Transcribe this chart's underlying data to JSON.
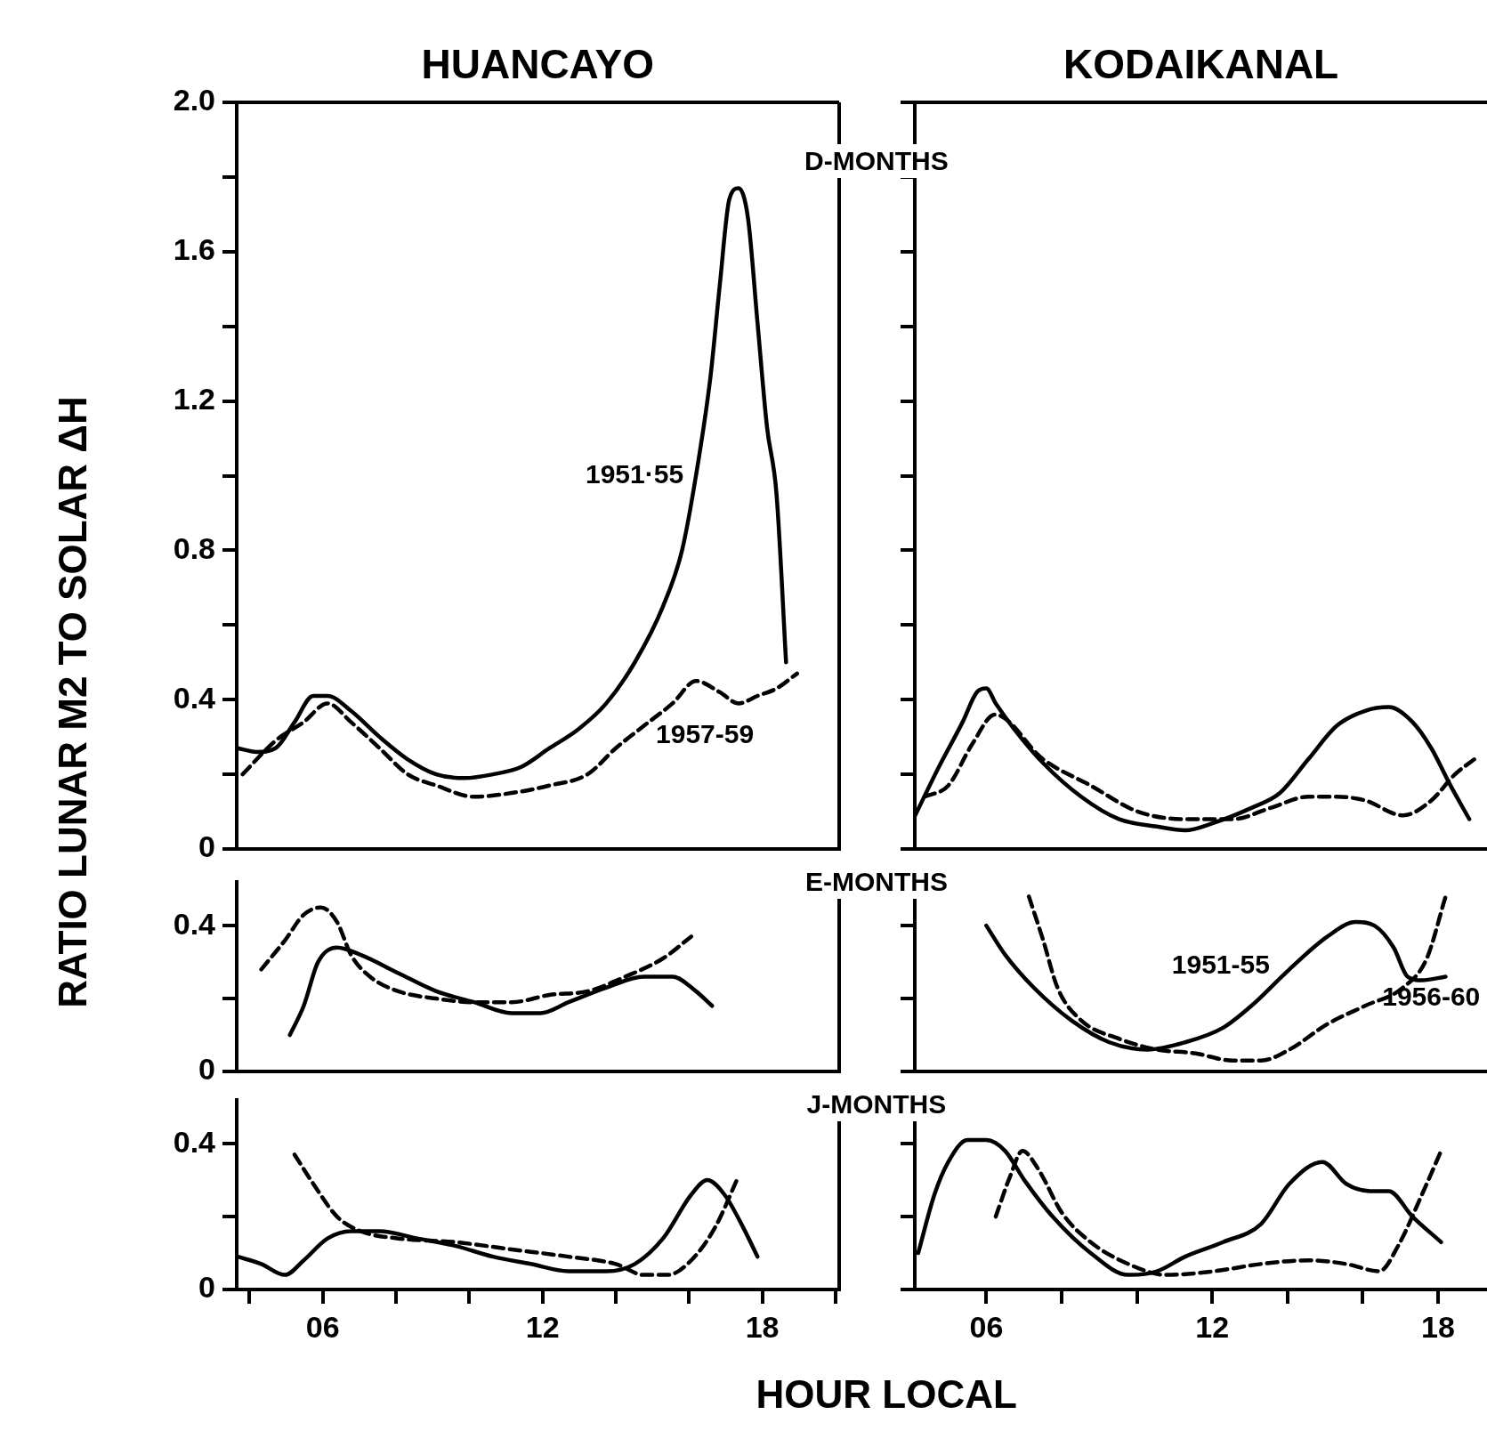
{
  "chart_data": [
    {
      "type": "line",
      "title": "HUANCAYO",
      "ylabel": "RATIO LUNAR M2 TO SOLAR ΔH",
      "annotations": [
        "D-MONTHS"
      ],
      "xlim": [
        3.65,
        20.1
      ],
      "ylim": [
        0,
        2
      ],
      "yticks": [
        0,
        {
          "value": 0.2,
          "label": null
        },
        0.4,
        {
          "value": 0.6,
          "label": null
        },
        0.8,
        {
          "value": 1.0,
          "label": null
        },
        1.2,
        {
          "value": 1.4,
          "label": null
        },
        1.6,
        {
          "value": 1.8,
          "label": null
        },
        {
          "value": 2,
          "label": "2.0"
        }
      ],
      "tick_labels": "y",
      "series": [
        {
          "name": "1951·55",
          "color": "#000000",
          "line_style": "solid",
          "x": [
            3.68,
            4.19,
            4.71,
            5.23,
            5.74,
            6.13,
            6.77,
            7.55,
            8.32,
            9.1,
            9.87,
            10.65,
            11.42,
            12.19,
            12.97,
            13.74,
            14.52,
            15.29,
            15.81,
            16.19,
            16.58,
            16.84,
            17.1,
            17.35,
            17.61,
            17.87,
            18.13,
            18.39,
            18.65
          ],
          "values": [
            0.27,
            0.26,
            0.27,
            0.34,
            0.41,
            0.41,
            0.37,
            0.3,
            0.24,
            0.2,
            0.19,
            0.2,
            0.22,
            0.27,
            0.32,
            0.39,
            0.5,
            0.65,
            0.8,
            1.0,
            1.26,
            1.51,
            1.74,
            1.77,
            1.69,
            1.41,
            1.13,
            0.95,
            0.5
          ]
        },
        {
          "name": "1957-59",
          "color": "#000000",
          "line_style": "dashed",
          "x": [
            3.81,
            4.71,
            5.48,
            6.13,
            6.77,
            7.55,
            8.32,
            9.1,
            10.13,
            11.16,
            12.19,
            13.23,
            14.0,
            14.77,
            15.55,
            16.19,
            16.84,
            17.35,
            17.87,
            18.39,
            18.95
          ],
          "values": [
            0.2,
            0.29,
            0.34,
            0.39,
            0.34,
            0.27,
            0.2,
            0.17,
            0.14,
            0.15,
            0.17,
            0.2,
            0.27,
            0.33,
            0.39,
            0.45,
            0.42,
            0.39,
            0.41,
            0.43,
            0.47
          ]
        }
      ]
    },
    {
      "type": "line",
      "title": "KODAIKANAL",
      "xlim": [
        4.1,
        19.3
      ],
      "ylim": [
        0,
        2
      ],
      "yticks": [
        0,
        {
          "value": 0.2,
          "label": null
        },
        0.4,
        {
          "value": 0.6,
          "label": null
        },
        0.8,
        {
          "value": 1.0,
          "label": null
        },
        1.2,
        {
          "value": 1.4,
          "label": null
        },
        1.6,
        {
          "value": 1.8,
          "label": null
        },
        {
          "value": 2,
          "label": null
        }
      ],
      "tick_labels": false,
      "series": [
        {
          "color": "#000000",
          "line_style": "solid",
          "x": [
            4.11,
            4.74,
            5.37,
            5.75,
            6.0,
            6.25,
            6.75,
            7.51,
            8.52,
            9.52,
            10.53,
            11.28,
            12.04,
            13.04,
            13.8,
            14.55,
            15.31,
            16.06,
            16.69,
            17.32,
            17.82,
            18.33,
            18.83
          ],
          "values": [
            0.09,
            0.22,
            0.34,
            0.42,
            0.43,
            0.39,
            0.32,
            0.23,
            0.14,
            0.08,
            0.06,
            0.05,
            0.07,
            0.11,
            0.15,
            0.24,
            0.33,
            0.37,
            0.38,
            0.34,
            0.27,
            0.17,
            0.08
          ]
        },
        {
          "color": "#000000",
          "line_style": "dashed",
          "x": [
            4.36,
            4.99,
            5.62,
            6.23,
            7.51,
            8.77,
            10.03,
            11.28,
            12.54,
            13.55,
            14.55,
            15.31,
            16.06,
            17.07,
            17.82,
            18.45,
            18.96
          ],
          "values": [
            0.14,
            0.17,
            0.28,
            0.36,
            0.24,
            0.17,
            0.1,
            0.08,
            0.08,
            0.11,
            0.14,
            0.14,
            0.13,
            0.09,
            0.13,
            0.2,
            0.24
          ]
        }
      ]
    },
    {
      "type": "line",
      "annotations": [
        "E-MONTHS"
      ],
      "xlim": [
        3.65,
        20.1
      ],
      "ylim": [
        0,
        0.52
      ],
      "yticks": [
        0,
        {
          "value": 0.2,
          "label": null
        },
        0.4
      ],
      "tick_labels": "y",
      "series": [
        {
          "color": "#000000",
          "line_style": "solid",
          "x": [
            5.1,
            5.48,
            5.87,
            6.39,
            7.03,
            8.06,
            9.1,
            10.13,
            11.16,
            11.94,
            12.71,
            13.74,
            14.77,
            15.55,
            16.19,
            16.63
          ],
          "values": [
            0.1,
            0.18,
            0.3,
            0.34,
            0.32,
            0.27,
            0.22,
            0.19,
            0.16,
            0.16,
            0.19,
            0.23,
            0.26,
            0.26,
            0.22,
            0.18
          ]
        },
        {
          "color": "#000000",
          "line_style": "dashed",
          "x": [
            4.32,
            4.97,
            5.48,
            5.95,
            6.39,
            6.77,
            7.29,
            8.06,
            9.1,
            10.13,
            11.16,
            12.19,
            13.23,
            14.26,
            15.29,
            16.06
          ],
          "values": [
            0.28,
            0.36,
            0.43,
            0.45,
            0.41,
            0.32,
            0.26,
            0.22,
            0.2,
            0.19,
            0.19,
            0.21,
            0.22,
            0.26,
            0.31,
            0.37
          ]
        }
      ]
    },
    {
      "type": "line",
      "xlim": [
        4.1,
        19.3
      ],
      "ylim": [
        0,
        0.52
      ],
      "yticks": [
        0,
        {
          "value": 0.2,
          "label": null
        },
        0.4
      ],
      "tick_labels": false,
      "series": [
        {
          "name": "1951-55",
          "color": "#000000",
          "line_style": "solid",
          "x": [
            6.0,
            6.5,
            7.26,
            8.26,
            9.27,
            10.28,
            11.28,
            12.29,
            13.04,
            14.05,
            15.06,
            15.81,
            16.31,
            16.82,
            17.19,
            17.57,
            18.2
          ],
          "values": [
            0.4,
            0.32,
            0.23,
            0.14,
            0.08,
            0.06,
            0.08,
            0.12,
            0.18,
            0.28,
            0.37,
            0.41,
            0.4,
            0.34,
            0.26,
            0.25,
            0.26
          ]
        },
        {
          "name": "1956-60",
          "color": "#000000",
          "line_style": "dashed",
          "x": [
            7.13,
            7.51,
            7.89,
            8.52,
            9.52,
            10.53,
            11.53,
            12.54,
            13.3,
            14.05,
            15.06,
            16.06,
            17.07,
            17.7,
            18.2
          ],
          "values": [
            0.48,
            0.36,
            0.23,
            0.14,
            0.09,
            0.06,
            0.05,
            0.03,
            0.03,
            0.06,
            0.13,
            0.18,
            0.23,
            0.31,
            0.48
          ]
        }
      ]
    },
    {
      "type": "line",
      "xlabel": "HOUR LOCAL",
      "annotations": [
        "J-MONTHS"
      ],
      "xlim": [
        3.65,
        20.1
      ],
      "xticks": [
        {
          "value": 4,
          "label": null
        },
        {
          "value": 6,
          "label": "06"
        },
        {
          "value": 8,
          "label": null
        },
        {
          "value": 10,
          "label": null
        },
        {
          "value": 12,
          "label": "12"
        },
        {
          "value": 14,
          "label": null
        },
        {
          "value": 16,
          "label": null
        },
        {
          "value": 18,
          "label": "18"
        },
        {
          "value": 20,
          "label": null
        }
      ],
      "ylim": [
        0,
        0.52
      ],
      "yticks": [
        0,
        {
          "value": 0.2,
          "label": null
        },
        0.4
      ],
      "series": [
        {
          "color": "#000000",
          "line_style": "solid",
          "x": [
            3.68,
            4.32,
            4.97,
            5.48,
            6.13,
            6.77,
            7.55,
            8.58,
            9.61,
            10.65,
            11.68,
            12.71,
            13.74,
            14.52,
            15.29,
            16.06,
            16.5,
            16.97,
            17.48,
            17.87
          ],
          "values": [
            0.09,
            0.07,
            0.04,
            0.08,
            0.14,
            0.16,
            0.16,
            0.14,
            0.12,
            0.09,
            0.07,
            0.05,
            0.05,
            0.07,
            0.14,
            0.26,
            0.3,
            0.26,
            0.17,
            0.09
          ]
        },
        {
          "color": "#000000",
          "line_style": "dashed",
          "x": [
            5.23,
            5.74,
            6.39,
            7.03,
            8.06,
            9.61,
            11.16,
            12.71,
            14.0,
            14.77,
            15.42,
            16.06,
            16.71,
            17.35
          ],
          "values": [
            0.37,
            0.29,
            0.2,
            0.16,
            0.14,
            0.13,
            0.11,
            0.09,
            0.07,
            0.04,
            0.04,
            0.08,
            0.17,
            0.31
          ]
        }
      ]
    },
    {
      "type": "line",
      "xlim": [
        4.1,
        19.3
      ],
      "xticks": [
        {
          "value": 6,
          "label": "06"
        },
        {
          "value": 8,
          "label": null
        },
        {
          "value": 10,
          "label": null
        },
        {
          "value": 12,
          "label": "12"
        },
        {
          "value": 14,
          "label": null
        },
        {
          "value": 16,
          "label": null
        },
        {
          "value": 18,
          "label": "18"
        }
      ],
      "ylim": [
        0,
        0.52
      ],
      "yticks": [
        0,
        {
          "value": 0.2,
          "label": null
        },
        0.4
      ],
      "tick_labels": "x",
      "series": [
        {
          "color": "#000000",
          "line_style": "solid",
          "x": [
            4.19,
            4.62,
            4.99,
            5.5,
            6.0,
            6.5,
            7.01,
            7.76,
            8.77,
            9.77,
            10.53,
            11.28,
            12.29,
            13.3,
            14.05,
            14.93,
            15.56,
            16.19,
            16.69,
            17.32,
            18.08
          ],
          "values": [
            0.1,
            0.26,
            0.35,
            0.41,
            0.41,
            0.38,
            0.3,
            0.2,
            0.1,
            0.04,
            0.05,
            0.09,
            0.13,
            0.18,
            0.29,
            0.35,
            0.29,
            0.27,
            0.27,
            0.2,
            0.13
          ]
        },
        {
          "color": "#000000",
          "line_style": "dashed",
          "x": [
            6.25,
            6.63,
            6.96,
            7.38,
            8.01,
            8.77,
            9.77,
            10.78,
            12.04,
            13.3,
            14.55,
            15.56,
            16.44,
            16.94,
            17.57,
            18.08
          ],
          "values": [
            0.2,
            0.31,
            0.38,
            0.33,
            0.21,
            0.13,
            0.07,
            0.04,
            0.05,
            0.07,
            0.08,
            0.07,
            0.05,
            0.12,
            0.26,
            0.38
          ]
        }
      ]
    }
  ]
}
